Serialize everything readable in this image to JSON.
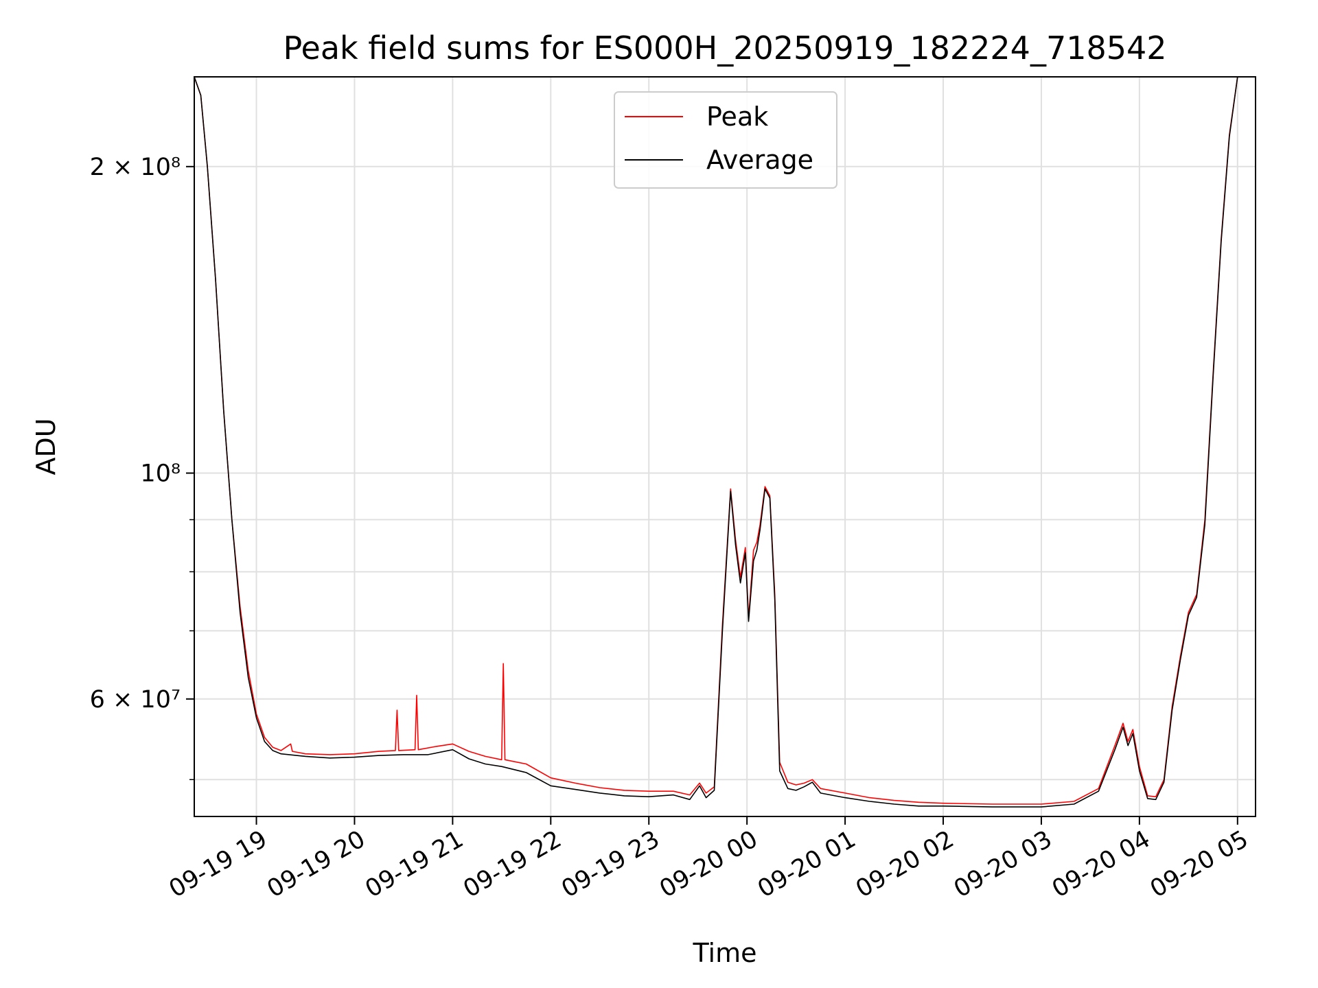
{
  "chart_data": {
    "type": "line",
    "title": "Peak field sums for ES000H_20250919_182224_718542",
    "xlabel": "Time",
    "ylabel": "ADU",
    "y_scale": "log",
    "ylim": [
      46000000,
      245000000
    ],
    "xlim": [
      "2025-09-19T18:22",
      "2025-09-20T05:11"
    ],
    "grid": true,
    "legend_position": "top-center",
    "x_ticks": [
      {
        "label": "09-19 19",
        "value": "2025-09-19T19:00"
      },
      {
        "label": "09-19 20",
        "value": "2025-09-19T20:00"
      },
      {
        "label": "09-19 21",
        "value": "2025-09-19T21:00"
      },
      {
        "label": "09-19 22",
        "value": "2025-09-19T22:00"
      },
      {
        "label": "09-19 23",
        "value": "2025-09-19T23:00"
      },
      {
        "label": "09-20 00",
        "value": "2025-09-20T00:00"
      },
      {
        "label": "09-20 01",
        "value": "2025-09-20T01:00"
      },
      {
        "label": "09-20 02",
        "value": "2025-09-20T02:00"
      },
      {
        "label": "09-20 03",
        "value": "2025-09-20T03:00"
      },
      {
        "label": "09-20 04",
        "value": "2025-09-20T04:00"
      },
      {
        "label": "09-20 05",
        "value": "2025-09-20T05:00"
      }
    ],
    "y_major_ticks": [
      {
        "label": "6 × 10⁷",
        "value": 60000000
      },
      {
        "label": "10⁸",
        "value": 100000000
      },
      {
        "label": "2 × 10⁸",
        "value": 200000000
      }
    ],
    "y_minor_gridlines": [
      50000000,
      70000000,
      80000000,
      90000000
    ],
    "series": [
      {
        "name": "Peak",
        "color": "#ff0000",
        "points": [
          [
            "2025-09-19T18:22",
            245000000
          ],
          [
            "2025-09-19T18:26",
            235000000
          ],
          [
            "2025-09-19T18:30",
            200000000
          ],
          [
            "2025-09-19T18:35",
            155000000
          ],
          [
            "2025-09-19T18:40",
            115000000
          ],
          [
            "2025-09-19T18:45",
            90000000
          ],
          [
            "2025-09-19T18:50",
            74000000
          ],
          [
            "2025-09-19T18:55",
            64000000
          ],
          [
            "2025-09-19T19:00",
            58000000
          ],
          [
            "2025-09-19T19:05",
            55000000
          ],
          [
            "2025-09-19T19:10",
            53800000
          ],
          [
            "2025-09-19T19:15",
            53400000
          ],
          [
            "2025-09-19T19:21",
            54200000
          ],
          [
            "2025-09-19T19:22",
            53300000
          ],
          [
            "2025-09-19T19:30",
            53000000
          ],
          [
            "2025-09-19T19:45",
            52900000
          ],
          [
            "2025-09-19T20:00",
            53000000
          ],
          [
            "2025-09-19T20:15",
            53300000
          ],
          [
            "2025-09-19T20:25",
            53400000
          ],
          [
            "2025-09-19T20:26",
            58500000
          ],
          [
            "2025-09-19T20:27",
            53400000
          ],
          [
            "2025-09-19T20:37",
            53500000
          ],
          [
            "2025-09-19T20:38",
            60500000
          ],
          [
            "2025-09-19T20:39",
            53500000
          ],
          [
            "2025-09-19T20:50",
            53900000
          ],
          [
            "2025-09-19T21:00",
            54200000
          ],
          [
            "2025-09-19T21:10",
            53300000
          ],
          [
            "2025-09-19T21:20",
            52700000
          ],
          [
            "2025-09-19T21:30",
            52300000
          ],
          [
            "2025-09-19T21:31",
            65000000
          ],
          [
            "2025-09-19T21:32",
            52300000
          ],
          [
            "2025-09-19T21:45",
            51800000
          ],
          [
            "2025-09-19T22:00",
            50200000
          ],
          [
            "2025-09-19T22:15",
            49600000
          ],
          [
            "2025-09-19T22:30",
            49100000
          ],
          [
            "2025-09-19T22:45",
            48800000
          ],
          [
            "2025-09-19T23:00",
            48700000
          ],
          [
            "2025-09-19T23:15",
            48700000
          ],
          [
            "2025-09-19T23:25",
            48300000
          ],
          [
            "2025-09-19T23:31",
            49600000
          ],
          [
            "2025-09-19T23:35",
            48500000
          ],
          [
            "2025-09-19T23:40",
            49200000
          ],
          [
            "2025-09-19T23:45",
            71000000
          ],
          [
            "2025-09-19T23:50",
            96500000
          ],
          [
            "2025-09-19T23:53",
            86000000
          ],
          [
            "2025-09-19T23:56",
            79000000
          ],
          [
            "2025-09-19T23:59",
            84500000
          ],
          [
            "2025-09-20T00:01",
            72000000
          ],
          [
            "2025-09-20T00:04",
            84000000
          ],
          [
            "2025-09-20T00:06",
            85500000
          ],
          [
            "2025-09-20T00:08",
            89000000
          ],
          [
            "2025-09-20T00:11",
            97000000
          ],
          [
            "2025-09-20T00:14",
            95000000
          ],
          [
            "2025-09-20T00:17",
            76000000
          ],
          [
            "2025-09-20T00:20",
            52000000
          ],
          [
            "2025-09-20T00:25",
            49700000
          ],
          [
            "2025-09-20T00:30",
            49400000
          ],
          [
            "2025-09-20T00:35",
            49600000
          ],
          [
            "2025-09-20T00:40",
            50000000
          ],
          [
            "2025-09-20T00:45",
            49000000
          ],
          [
            "2025-09-20T01:00",
            48500000
          ],
          [
            "2025-09-20T01:15",
            48000000
          ],
          [
            "2025-09-20T01:30",
            47700000
          ],
          [
            "2025-09-20T01:45",
            47500000
          ],
          [
            "2025-09-20T02:00",
            47400000
          ],
          [
            "2025-09-20T02:30",
            47300000
          ],
          [
            "2025-09-20T03:00",
            47300000
          ],
          [
            "2025-09-20T03:20",
            47600000
          ],
          [
            "2025-09-20T03:35",
            49000000
          ],
          [
            "2025-09-20T03:45",
            54000000
          ],
          [
            "2025-09-20T03:50",
            56800000
          ],
          [
            "2025-09-20T03:53",
            54500000
          ],
          [
            "2025-09-20T03:56",
            56000000
          ],
          [
            "2025-09-20T04:00",
            51500000
          ],
          [
            "2025-09-20T04:05",
            48200000
          ],
          [
            "2025-09-20T04:10",
            48100000
          ],
          [
            "2025-09-20T04:15",
            50000000
          ],
          [
            "2025-09-20T04:20",
            59000000
          ],
          [
            "2025-09-20T04:25",
            66000000
          ],
          [
            "2025-09-20T04:30",
            73000000
          ],
          [
            "2025-09-20T04:35",
            76000000
          ],
          [
            "2025-09-20T04:40",
            90000000
          ],
          [
            "2025-09-20T04:45",
            125000000
          ],
          [
            "2025-09-20T04:50",
            170000000
          ],
          [
            "2025-09-20T04:55",
            215000000
          ],
          [
            "2025-09-20T05:00",
            245000000
          ]
        ]
      },
      {
        "name": "Average",
        "color": "#000000",
        "points": [
          [
            "2025-09-19T18:22",
            245000000
          ],
          [
            "2025-09-19T18:26",
            235000000
          ],
          [
            "2025-09-19T18:30",
            200000000
          ],
          [
            "2025-09-19T18:35",
            155000000
          ],
          [
            "2025-09-19T18:40",
            115000000
          ],
          [
            "2025-09-19T18:45",
            90000000
          ],
          [
            "2025-09-19T18:50",
            73000000
          ],
          [
            "2025-09-19T18:55",
            63000000
          ],
          [
            "2025-09-19T19:00",
            57500000
          ],
          [
            "2025-09-19T19:05",
            54500000
          ],
          [
            "2025-09-19T19:10",
            53400000
          ],
          [
            "2025-09-19T19:15",
            53000000
          ],
          [
            "2025-09-19T19:30",
            52700000
          ],
          [
            "2025-09-19T19:45",
            52500000
          ],
          [
            "2025-09-19T20:00",
            52600000
          ],
          [
            "2025-09-19T20:15",
            52800000
          ],
          [
            "2025-09-19T20:30",
            52900000
          ],
          [
            "2025-09-19T20:45",
            52900000
          ],
          [
            "2025-09-19T21:00",
            53500000
          ],
          [
            "2025-09-19T21:10",
            52400000
          ],
          [
            "2025-09-19T21:20",
            51800000
          ],
          [
            "2025-09-19T21:30",
            51500000
          ],
          [
            "2025-09-19T21:45",
            50800000
          ],
          [
            "2025-09-19T22:00",
            49300000
          ],
          [
            "2025-09-19T22:15",
            48900000
          ],
          [
            "2025-09-19T22:30",
            48500000
          ],
          [
            "2025-09-19T22:45",
            48200000
          ],
          [
            "2025-09-19T23:00",
            48100000
          ],
          [
            "2025-09-19T23:15",
            48300000
          ],
          [
            "2025-09-19T23:25",
            47800000
          ],
          [
            "2025-09-19T23:31",
            49300000
          ],
          [
            "2025-09-19T23:35",
            48000000
          ],
          [
            "2025-09-19T23:40",
            48800000
          ],
          [
            "2025-09-19T23:45",
            70000000
          ],
          [
            "2025-09-19T23:50",
            96000000
          ],
          [
            "2025-09-19T23:53",
            85000000
          ],
          [
            "2025-09-19T23:56",
            78000000
          ],
          [
            "2025-09-19T23:59",
            83500000
          ],
          [
            "2025-09-20T00:01",
            71500000
          ],
          [
            "2025-09-20T00:04",
            82000000
          ],
          [
            "2025-09-20T00:06",
            84000000
          ],
          [
            "2025-09-20T00:08",
            88000000
          ],
          [
            "2025-09-20T00:11",
            96500000
          ],
          [
            "2025-09-20T00:14",
            94500000
          ],
          [
            "2025-09-20T00:17",
            75000000
          ],
          [
            "2025-09-20T00:20",
            51000000
          ],
          [
            "2025-09-20T00:25",
            49000000
          ],
          [
            "2025-09-20T00:30",
            48800000
          ],
          [
            "2025-09-20T00:35",
            49200000
          ],
          [
            "2025-09-20T00:40",
            49700000
          ],
          [
            "2025-09-20T00:45",
            48500000
          ],
          [
            "2025-09-20T01:00",
            48000000
          ],
          [
            "2025-09-20T01:15",
            47600000
          ],
          [
            "2025-09-20T01:30",
            47300000
          ],
          [
            "2025-09-20T01:45",
            47100000
          ],
          [
            "2025-09-20T02:00",
            47100000
          ],
          [
            "2025-09-20T02:30",
            47000000
          ],
          [
            "2025-09-20T03:00",
            47000000
          ],
          [
            "2025-09-20T03:20",
            47300000
          ],
          [
            "2025-09-20T03:35",
            48700000
          ],
          [
            "2025-09-20T03:45",
            53500000
          ],
          [
            "2025-09-20T03:50",
            56300000
          ],
          [
            "2025-09-20T03:53",
            54000000
          ],
          [
            "2025-09-20T03:56",
            55500000
          ],
          [
            "2025-09-20T04:00",
            51000000
          ],
          [
            "2025-09-20T04:05",
            47900000
          ],
          [
            "2025-09-20T04:10",
            47800000
          ],
          [
            "2025-09-20T04:15",
            49700000
          ],
          [
            "2025-09-20T04:20",
            58500000
          ],
          [
            "2025-09-20T04:25",
            65500000
          ],
          [
            "2025-09-20T04:30",
            72500000
          ],
          [
            "2025-09-20T04:35",
            75500000
          ],
          [
            "2025-09-20T04:40",
            89000000
          ],
          [
            "2025-09-20T04:45",
            124000000
          ],
          [
            "2025-09-20T04:50",
            169000000
          ],
          [
            "2025-09-20T04:55",
            214000000
          ],
          [
            "2025-09-20T05:00",
            245000000
          ]
        ]
      }
    ]
  }
}
